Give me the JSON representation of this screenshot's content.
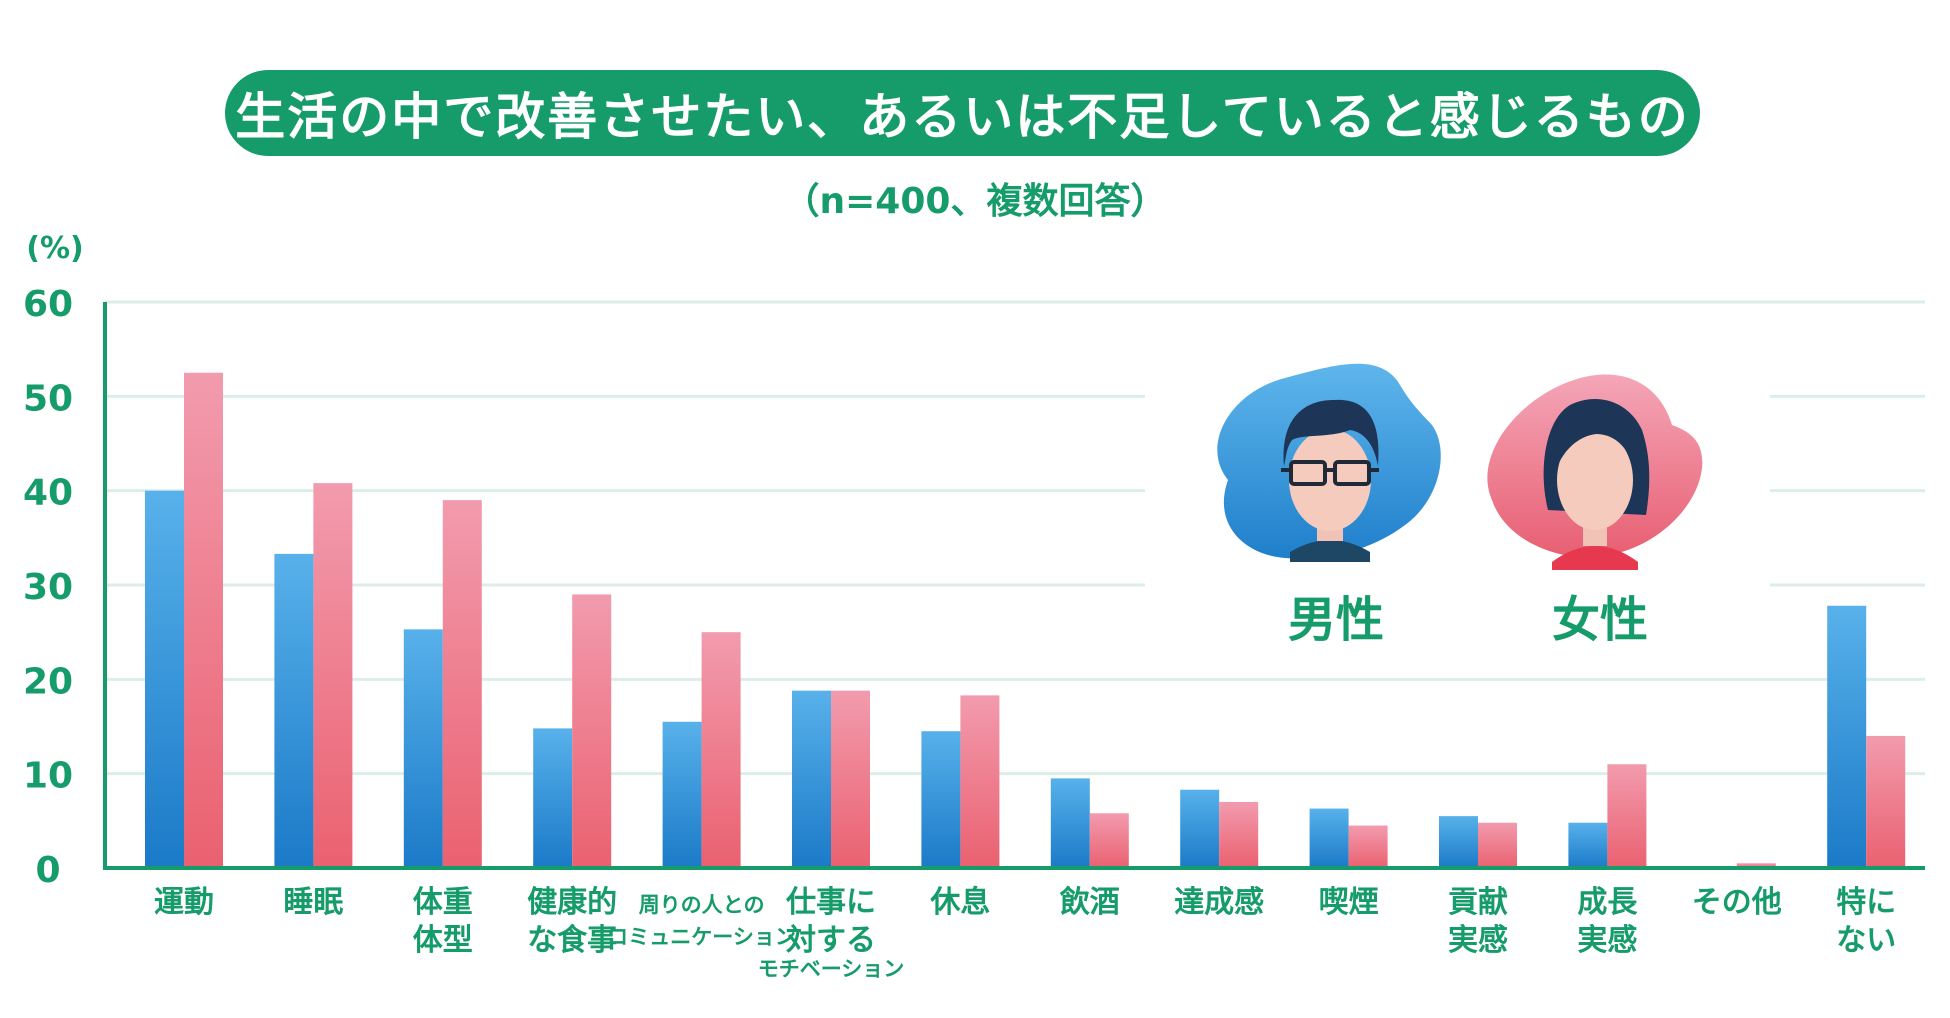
{
  "title": "生活の中で改善させたい、あるいは不足していると感じるもの",
  "subtitle": "（n=400、複数回答）",
  "colors": {
    "green": "#169b6b",
    "male": "#2b8fd4",
    "female": "#ee6f7a"
  },
  "chart_data": {
    "type": "bar",
    "ylabel": "(%)",
    "ylim": [
      0,
      60
    ],
    "yticks": [
      "0",
      "10",
      "20",
      "30",
      "40",
      "50",
      "60"
    ],
    "grid": true,
    "legend_position": "top-right",
    "categories": [
      [
        "運動"
      ],
      [
        "睡眠"
      ],
      [
        "体重",
        "体型"
      ],
      [
        "健康的",
        "な食事"
      ],
      [
        "周りの人との",
        "コミュニケーション"
      ],
      [
        "仕事に",
        "対する",
        "モチベーション"
      ],
      [
        "休息"
      ],
      [
        "飲酒"
      ],
      [
        "達成感"
      ],
      [
        "喫煙"
      ],
      [
        "貢献",
        "実感"
      ],
      [
        "成長",
        "実感"
      ],
      [
        "その他"
      ],
      [
        "特に",
        "ない"
      ]
    ],
    "series": [
      {
        "name": "男性",
        "color": "#2b8fd4",
        "values": [
          40.0,
          33.3,
          25.3,
          14.8,
          15.5,
          18.8,
          14.5,
          9.5,
          8.3,
          6.3,
          5.5,
          4.8,
          0.0,
          27.8
        ]
      },
      {
        "name": "女性",
        "color": "#ee6f7a",
        "values": [
          52.5,
          40.8,
          39.0,
          29.0,
          25.0,
          18.8,
          18.3,
          5.8,
          7.0,
          4.5,
          4.8,
          11.0,
          0.5,
          14.0
        ]
      }
    ]
  }
}
